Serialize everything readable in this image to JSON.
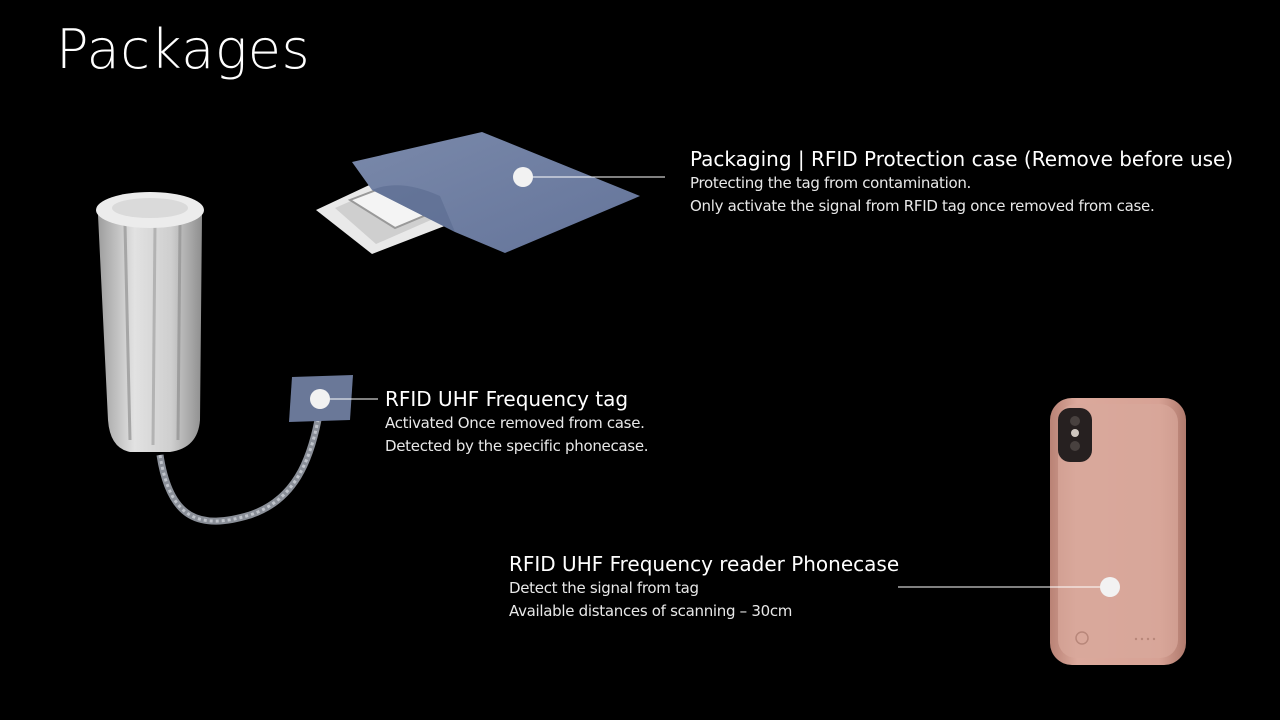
{
  "slide": {
    "title": "Packages"
  },
  "callouts": {
    "packaging": {
      "heading": "Packaging | RFID Protection case (Remove before use)",
      "lines": [
        "Protecting the tag from contamination.",
        "Only activate the signal from RFID tag once removed from case."
      ]
    },
    "tag": {
      "heading": "RFID UHF Frequency tag",
      "lines": [
        "Activated Once removed from case.",
        "Detected by the specific phonecase."
      ]
    },
    "reader": {
      "heading": "RFID UHF Frequency reader Phonecase",
      "lines": [
        "Detect the signal from tag",
        "Available distances of scanning – 30cm"
      ]
    }
  },
  "colors": {
    "background": "#000000",
    "text": "#ffffff",
    "pouch": "#6f7fa0",
    "tampon": "#d6d6d6",
    "phone_case": "#d4a093",
    "marker": "#f2f2f2"
  },
  "icons": {
    "pouch": "rfid-protection-pouch-image",
    "tampon": "tampon-with-rfid-tag-image",
    "phone": "rfid-reader-phonecase-image"
  }
}
